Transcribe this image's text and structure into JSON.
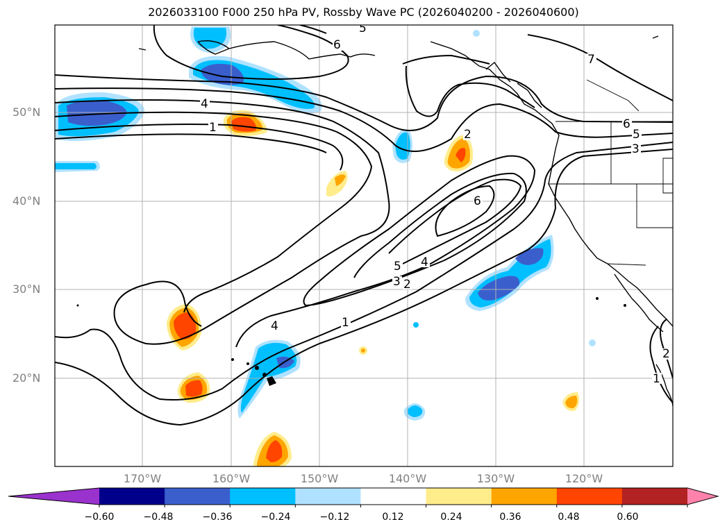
{
  "title": "2026033100 F000 250 hPa PV, Rossby Wave PC (2026040200 - 2026040600)",
  "latitude_labels": [
    "50°N",
    "40°N",
    "30°N",
    "20°N"
  ],
  "longitude_labels": [
    "170°W",
    "160°W",
    "150°W",
    "140°W",
    "130°W",
    "120°W"
  ],
  "colorbar": {
    "tick_labels": [
      "−0.60",
      "−0.48",
      "−0.36",
      "−0.24",
      "−0.12",
      "0.12",
      "0.24",
      "0.36",
      "0.48",
      "0.60"
    ],
    "colors": [
      "#9a32cd",
      "#00008b",
      "#3a5fcd",
      "#00bfff",
      "#b0e2ff",
      "#ffffff",
      "#ffec8b",
      "#ffa500",
      "#ff4500",
      "#b22222",
      "#ff82ab"
    ]
  },
  "contour_labels": [
    "5",
    "6",
    "4",
    "1",
    "2",
    "6",
    "5",
    "4",
    "3",
    "2",
    "1",
    "4",
    "6",
    "5",
    "3",
    "7",
    "1",
    "2"
  ],
  "colors": {
    "coastline": "#000000",
    "grid": "#b0b0b0",
    "contour": "#000000"
  }
}
